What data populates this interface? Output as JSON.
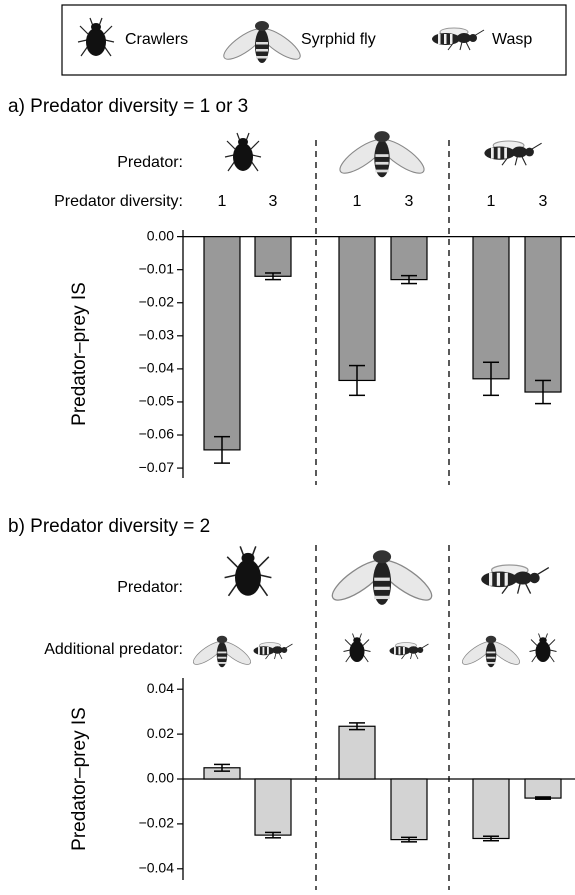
{
  "legend": {
    "items": [
      "Crawlers",
      "Syrphid fly",
      "Wasp"
    ]
  },
  "chart_data": [
    {
      "type": "bar",
      "title": "a) Predator diversity = 1 or 3",
      "row_labels": [
        "Predator:",
        "Predator diversity:"
      ],
      "categories": [
        "1",
        "3",
        "1",
        "3",
        "1",
        "3"
      ],
      "y_label": "Predator–prey IS",
      "values": [
        -0.0645,
        -0.012,
        -0.0435,
        -0.013,
        -0.043,
        -0.047
      ],
      "errors": [
        0.004,
        0.001,
        0.0045,
        0.0012,
        0.005,
        0.0035
      ],
      "color": "#999999",
      "ylim": [
        -0.073,
        0.002
      ],
      "yticks": [
        {
          "value": 0,
          "label": "0.00"
        },
        {
          "value": -0.01,
          "label": "−0.01"
        },
        {
          "value": -0.02,
          "label": "−0.02"
        },
        {
          "value": -0.03,
          "label": "−0.03"
        },
        {
          "value": -0.04,
          "label": "−0.04"
        },
        {
          "value": -0.05,
          "label": "−0.05"
        },
        {
          "value": -0.06,
          "label": "−0.06"
        },
        {
          "value": -0.07,
          "label": "−0.07"
        }
      ]
    },
    {
      "type": "bar",
      "title": "b) Predator diversity = 2",
      "row_labels": [
        "Predator:",
        "Additional predator:"
      ],
      "y_label": "Predator–prey IS",
      "values": [
        0.005,
        -0.025,
        0.0235,
        -0.027,
        -0.0265,
        -0.0085
      ],
      "errors": [
        0.0015,
        0.0012,
        0.0015,
        0.001,
        0.001,
        0.0005
      ],
      "color": "#d3d3d3",
      "ylim": [
        -0.045,
        0.045
      ],
      "yticks": [
        0.04,
        0.02,
        {
          "value": 0,
          "label": "0.00"
        },
        {
          "value": -0.02,
          "label": "−0.02"
        },
        {
          "value": -0.04,
          "label": "−0.04"
        }
      ]
    }
  ]
}
